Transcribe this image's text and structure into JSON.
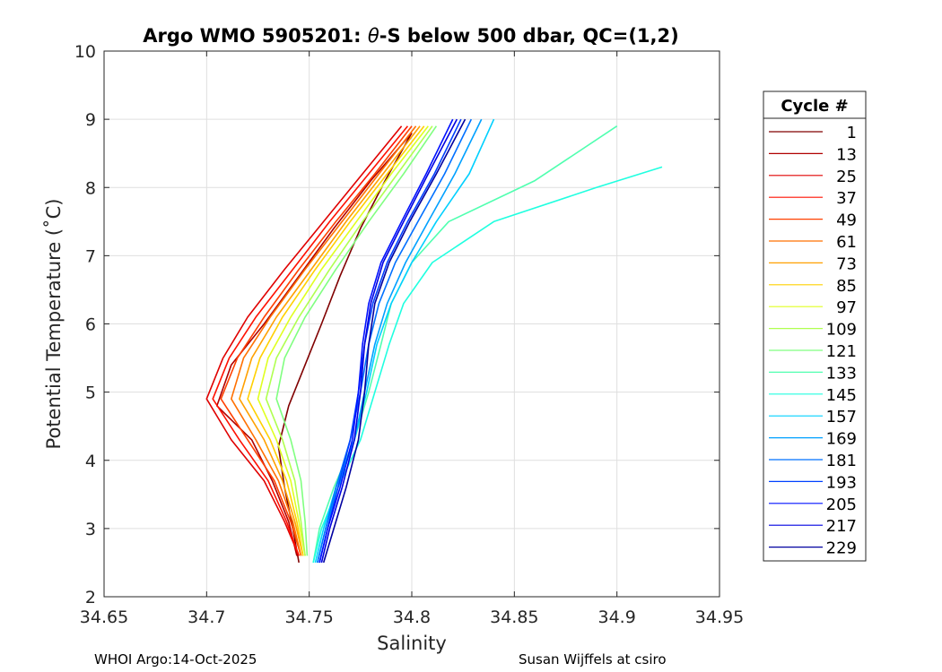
{
  "chart_data": {
    "type": "line",
    "title_prefix": "Argo WMO 5905201: ",
    "title_theta": "θ",
    "title_suffix": "-S below 500 dbar,  QC=(1,2)",
    "xlabel": "Salinity",
    "ylabel": "Potential Temperature (˚C)",
    "xlim": [
      34.65,
      34.95
    ],
    "ylim": [
      2,
      10
    ],
    "x_ticks": [
      34.65,
      34.7,
      34.75,
      34.8,
      34.85,
      34.9,
      34.95
    ],
    "x_tick_labels": [
      "34.65",
      "34.7",
      "34.75",
      "34.8",
      "34.85",
      "34.9",
      "34.95"
    ],
    "y_ticks": [
      2,
      3,
      4,
      5,
      6,
      7,
      8,
      9,
      10
    ],
    "y_tick_labels": [
      "2",
      "3",
      "4",
      "5",
      "6",
      "7",
      "8",
      "9",
      "10"
    ],
    "grid": true,
    "legend_title": "Cycle #",
    "legend_position": "outside-right",
    "legend": [
      {
        "label": "1",
        "color": "#800000"
      },
      {
        "label": "13",
        "color": "#b00000"
      },
      {
        "label": "25",
        "color": "#e00000"
      },
      {
        "label": "37",
        "color": "#ff1000"
      },
      {
        "label": "49",
        "color": "#ff4000"
      },
      {
        "label": "61",
        "color": "#ff7000"
      },
      {
        "label": "73",
        "color": "#ffa000"
      },
      {
        "label": "85",
        "color": "#ffd000"
      },
      {
        "label": "97",
        "color": "#e0ff20"
      },
      {
        "label": "109",
        "color": "#b0ff50"
      },
      {
        "label": "121",
        "color": "#80ff80"
      },
      {
        "label": "133",
        "color": "#50ffb0"
      },
      {
        "label": "145",
        "color": "#20ffe0"
      },
      {
        "label": "157",
        "color": "#00d0ff"
      },
      {
        "label": "169",
        "color": "#00a0ff"
      },
      {
        "label": "181",
        "color": "#0070ff"
      },
      {
        "label": "193",
        "color": "#0040ff"
      },
      {
        "label": "205",
        "color": "#0010ff"
      },
      {
        "label": "217",
        "color": "#0000e0"
      },
      {
        "label": "229",
        "color": "#0000a0"
      }
    ],
    "series": [
      {
        "name": "1",
        "color": "#800000",
        "salinity": [
          34.745,
          34.742,
          34.738,
          34.735,
          34.74,
          34.748,
          34.756,
          34.765,
          34.775,
          34.787,
          34.8
        ],
        "theta": [
          2.5,
          3.0,
          3.6,
          4.2,
          4.8,
          5.4,
          6.0,
          6.7,
          7.4,
          8.1,
          8.8
        ]
      },
      {
        "name": "13",
        "color": "#b00000",
        "salinity": [
          34.744,
          34.74,
          34.732,
          34.722,
          34.705,
          34.712,
          34.728,
          34.745,
          34.762,
          34.78,
          34.8
        ],
        "theta": [
          2.6,
          3.1,
          3.7,
          4.3,
          4.8,
          5.4,
          6.0,
          6.7,
          7.4,
          8.1,
          8.8
        ]
      },
      {
        "name": "25",
        "color": "#e00000",
        "salinity": [
          34.745,
          34.738,
          34.728,
          34.712,
          34.7,
          34.708,
          34.72,
          34.738,
          34.757,
          34.776,
          34.795
        ],
        "theta": [
          2.6,
          3.1,
          3.7,
          4.3,
          4.9,
          5.5,
          6.1,
          6.8,
          7.5,
          8.2,
          8.9
        ]
      },
      {
        "name": "37",
        "color": "#ff1000",
        "salinity": [
          34.745,
          34.739,
          34.73,
          34.716,
          34.703,
          34.711,
          34.724,
          34.742,
          34.76,
          34.779,
          34.798
        ],
        "theta": [
          2.6,
          3.1,
          3.7,
          4.3,
          4.9,
          5.5,
          6.1,
          6.8,
          7.5,
          8.2,
          8.9
        ]
      },
      {
        "name": "49",
        "color": "#ff4000",
        "salinity": [
          34.746,
          34.741,
          34.733,
          34.72,
          34.707,
          34.715,
          34.728,
          34.745,
          34.763,
          34.782,
          34.8
        ],
        "theta": [
          2.6,
          3.1,
          3.7,
          4.3,
          4.9,
          5.5,
          6.1,
          6.8,
          7.5,
          8.2,
          8.9
        ]
      },
      {
        "name": "61",
        "color": "#ff7000",
        "salinity": [
          34.746,
          34.742,
          34.735,
          34.724,
          34.712,
          34.718,
          34.731,
          34.748,
          34.766,
          34.784,
          34.802
        ],
        "theta": [
          2.6,
          3.1,
          3.7,
          4.3,
          4.9,
          5.5,
          6.1,
          6.8,
          7.5,
          8.2,
          8.9
        ]
      },
      {
        "name": "73",
        "color": "#ffa000",
        "salinity": [
          34.747,
          34.743,
          34.737,
          34.728,
          34.716,
          34.722,
          34.734,
          34.751,
          34.768,
          34.786,
          34.804
        ],
        "theta": [
          2.6,
          3.1,
          3.7,
          4.3,
          4.9,
          5.5,
          6.1,
          6.8,
          7.5,
          8.2,
          8.9
        ]
      },
      {
        "name": "85",
        "color": "#ffd000",
        "salinity": [
          34.747,
          34.744,
          34.739,
          34.731,
          34.72,
          34.726,
          34.737,
          34.753,
          34.77,
          34.788,
          34.806
        ],
        "theta": [
          2.6,
          3.1,
          3.7,
          4.3,
          4.9,
          5.5,
          6.1,
          6.8,
          7.5,
          8.2,
          8.9
        ]
      },
      {
        "name": "97",
        "color": "#e0ff20",
        "salinity": [
          34.748,
          34.745,
          34.741,
          34.734,
          34.725,
          34.73,
          34.741,
          34.756,
          34.773,
          34.79,
          34.808
        ],
        "theta": [
          2.6,
          3.1,
          3.7,
          4.3,
          4.9,
          5.5,
          6.1,
          6.8,
          7.5,
          8.2,
          8.9
        ]
      },
      {
        "name": "109",
        "color": "#b0ff50",
        "salinity": [
          34.748,
          34.746,
          34.743,
          34.737,
          34.729,
          34.734,
          34.745,
          34.76,
          34.776,
          34.793,
          34.81
        ],
        "theta": [
          2.6,
          3.1,
          3.7,
          4.3,
          4.9,
          5.5,
          6.1,
          6.8,
          7.5,
          8.2,
          8.9
        ]
      },
      {
        "name": "121",
        "color": "#80ff80",
        "salinity": [
          34.749,
          34.748,
          34.746,
          34.741,
          34.734,
          34.738,
          34.748,
          34.763,
          34.779,
          34.796,
          34.812
        ],
        "theta": [
          2.6,
          3.1,
          3.7,
          4.3,
          4.9,
          5.5,
          6.1,
          6.8,
          7.5,
          8.2,
          8.9
        ]
      },
      {
        "name": "133",
        "color": "#50ffb0",
        "salinity": [
          34.752,
          34.755,
          34.762,
          34.772,
          34.779,
          34.785,
          34.79,
          34.8,
          34.818,
          34.86,
          34.9
        ],
        "theta": [
          2.5,
          3.0,
          3.6,
          4.3,
          5.0,
          5.7,
          6.3,
          6.9,
          7.5,
          8.1,
          8.9
        ]
      },
      {
        "name": "145",
        "color": "#20ffe0",
        "salinity": [
          34.752,
          34.756,
          34.764,
          34.775,
          34.782,
          34.789,
          34.796,
          34.81,
          34.84,
          34.89,
          34.922
        ],
        "theta": [
          2.5,
          3.0,
          3.6,
          4.3,
          5.0,
          5.7,
          6.3,
          6.9,
          7.5,
          8.0,
          8.3
        ]
      },
      {
        "name": "157",
        "color": "#00d0ff",
        "salinity": [
          34.753,
          34.757,
          34.763,
          34.772,
          34.778,
          34.783,
          34.79,
          34.8,
          34.812,
          34.828,
          34.84
        ],
        "theta": [
          2.5,
          3.0,
          3.6,
          4.3,
          5.0,
          5.7,
          6.3,
          6.9,
          7.5,
          8.2,
          9.0
        ]
      },
      {
        "name": "169",
        "color": "#00a0ff",
        "salinity": [
          34.754,
          34.758,
          34.764,
          34.772,
          34.777,
          34.782,
          34.788,
          34.797,
          34.808,
          34.821,
          34.834
        ],
        "theta": [
          2.5,
          3.0,
          3.6,
          4.3,
          5.0,
          5.7,
          6.3,
          6.9,
          7.5,
          8.2,
          9.0
        ]
      },
      {
        "name": "181",
        "color": "#0070ff",
        "salinity": [
          34.754,
          34.758,
          34.763,
          34.77,
          34.775,
          34.779,
          34.784,
          34.792,
          34.803,
          34.816,
          34.829
        ],
        "theta": [
          2.5,
          3.0,
          3.6,
          4.3,
          5.0,
          5.7,
          6.3,
          6.9,
          7.5,
          8.2,
          9.0
        ]
      },
      {
        "name": "193",
        "color": "#0040ff",
        "salinity": [
          34.755,
          34.759,
          34.764,
          34.77,
          34.774,
          34.777,
          34.781,
          34.788,
          34.798,
          34.811,
          34.824
        ],
        "theta": [
          2.5,
          3.0,
          3.6,
          4.3,
          5.0,
          5.7,
          6.3,
          6.9,
          7.5,
          8.2,
          9.0
        ]
      },
      {
        "name": "205",
        "color": "#0010ff",
        "salinity": [
          34.755,
          34.759,
          34.765,
          34.771,
          34.774,
          34.776,
          34.779,
          34.785,
          34.795,
          34.807,
          34.82
        ],
        "theta": [
          2.5,
          3.0,
          3.6,
          4.3,
          5.0,
          5.7,
          6.3,
          6.9,
          7.5,
          8.2,
          9.0
        ]
      },
      {
        "name": "217",
        "color": "#0000e0",
        "salinity": [
          34.756,
          34.76,
          34.766,
          34.772,
          34.775,
          34.777,
          34.78,
          34.786,
          34.796,
          34.808,
          34.822
        ],
        "theta": [
          2.5,
          3.0,
          3.6,
          4.3,
          5.0,
          5.7,
          6.3,
          6.9,
          7.5,
          8.2,
          9.0
        ]
      },
      {
        "name": "229",
        "color": "#0000a0",
        "salinity": [
          34.757,
          34.762,
          34.768,
          34.774,
          34.777,
          34.779,
          34.782,
          34.789,
          34.799,
          34.812,
          34.826
        ],
        "theta": [
          2.5,
          3.0,
          3.6,
          4.3,
          5.0,
          5.7,
          6.3,
          6.9,
          7.5,
          8.2,
          9.0
        ]
      }
    ]
  },
  "footer": {
    "left": "WHOI Argo:14-Oct-2025",
    "right": "Susan Wijffels at csiro"
  }
}
